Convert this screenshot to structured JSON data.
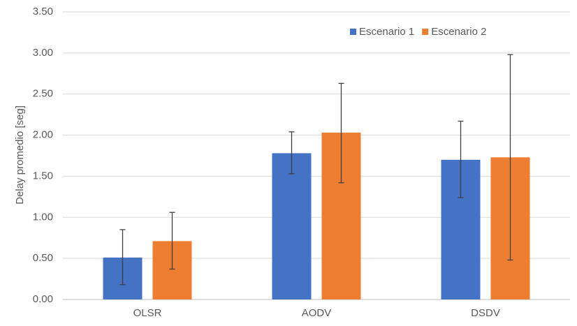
{
  "chart_data": {
    "type": "bar",
    "title": "",
    "xlabel": "",
    "ylabel": "Delay promedio [seg]",
    "ylim": [
      0,
      3.5
    ],
    "yticks": [
      "0.00",
      "0.50",
      "1.00",
      "1.50",
      "2.00",
      "2.50",
      "3.00",
      "3.50"
    ],
    "ytick_values": [
      0,
      0.5,
      1.0,
      1.5,
      2.0,
      2.5,
      3.0,
      3.5
    ],
    "grid": true,
    "legend_position": "top-right",
    "categories": [
      "OLSR",
      "AODV",
      "DSDV"
    ],
    "series": [
      {
        "name": "Escenario 1",
        "color": "#4472C4",
        "values": [
          0.51,
          1.78,
          1.7
        ],
        "error_low": [
          0.18,
          1.53,
          1.24
        ],
        "error_high": [
          0.85,
          2.04,
          2.17
        ]
      },
      {
        "name": "Escenario 2",
        "color": "#ED7D31",
        "values": [
          0.71,
          2.03,
          1.73
        ],
        "error_low": [
          0.37,
          1.42,
          0.48
        ],
        "error_high": [
          1.06,
          2.63,
          2.98
        ]
      }
    ]
  }
}
